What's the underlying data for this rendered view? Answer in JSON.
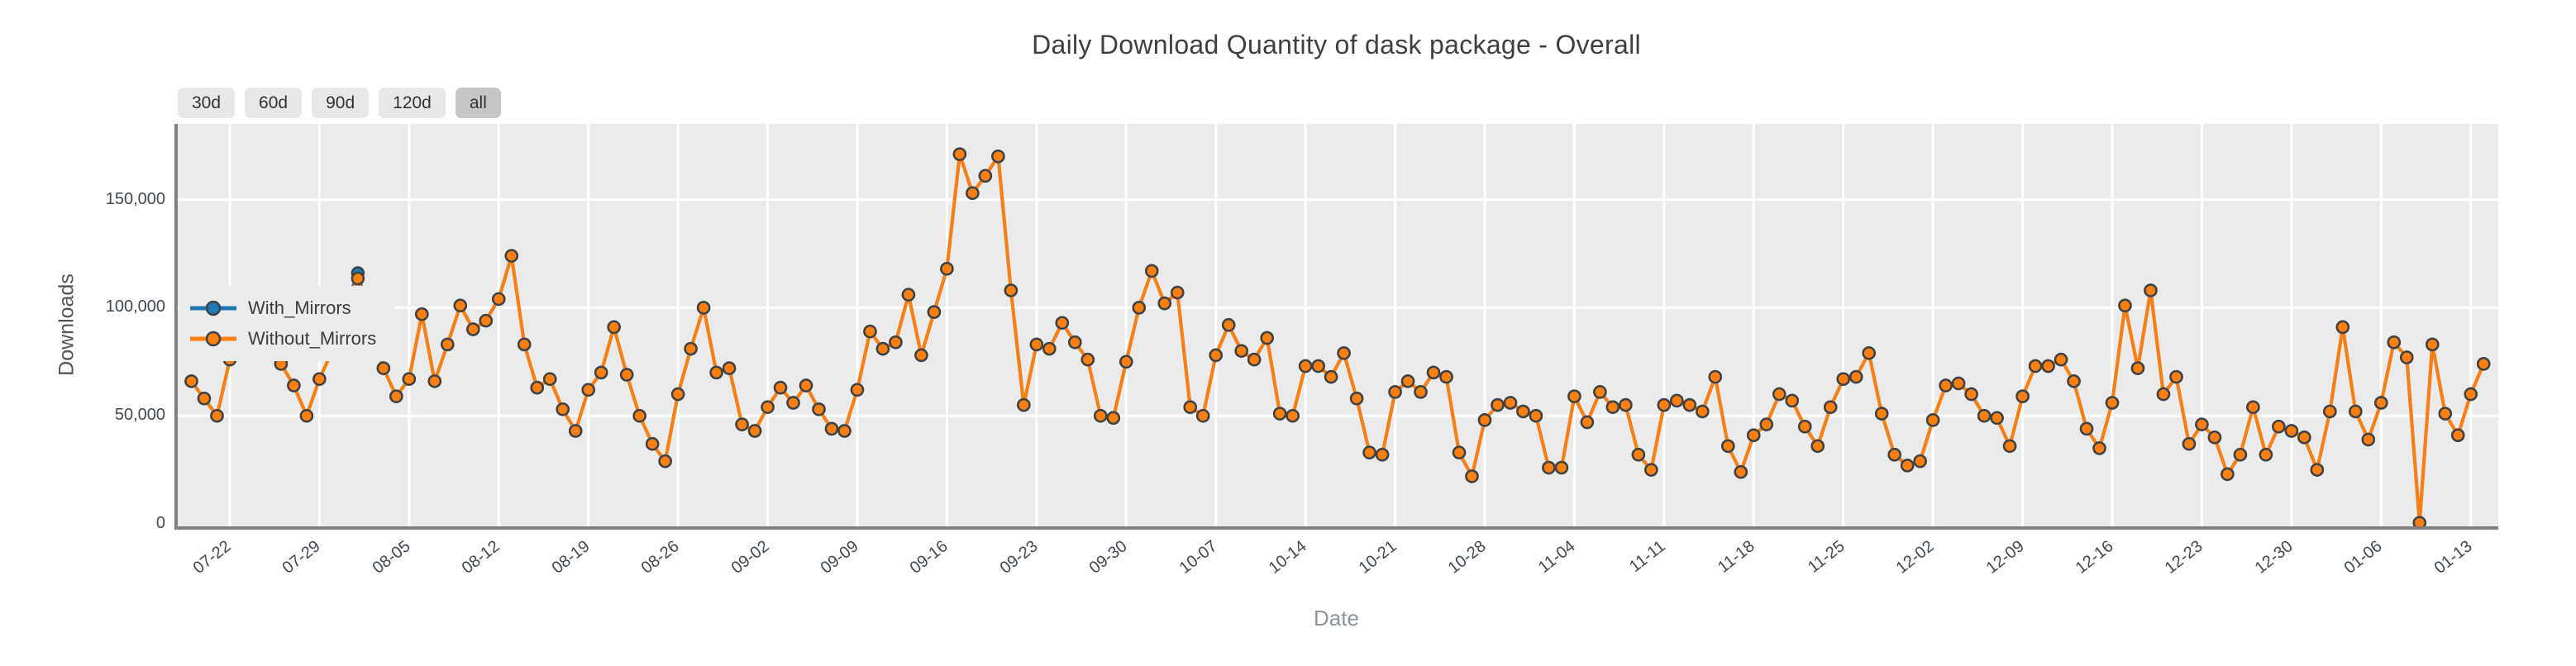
{
  "range_buttons": [
    {
      "label": "30d",
      "active": false
    },
    {
      "label": "60d",
      "active": false
    },
    {
      "label": "90d",
      "active": false
    },
    {
      "label": "120d",
      "active": false
    },
    {
      "label": "all",
      "active": true
    }
  ],
  "chart_data": {
    "type": "line",
    "title": "Daily Download Quantity of dask package - Overall",
    "xlabel": "Date",
    "ylabel": "Downloads",
    "grid": true,
    "legend_position": "upper left",
    "ylim": [
      0,
      185000
    ],
    "y_ticks": [
      0,
      50000,
      100000,
      150000
    ],
    "y_tick_labels": [
      "0",
      "50,000",
      "100,000",
      "150,000"
    ],
    "x_tick_labels": [
      "07-22",
      "07-29",
      "08-05",
      "08-12",
      "08-19",
      "08-26",
      "09-02",
      "09-09",
      "09-16",
      "09-23",
      "09-30",
      "10-07",
      "10-14",
      "10-21",
      "10-28",
      "11-04",
      "11-11",
      "11-18",
      "11-25",
      "12-02",
      "12-09",
      "12-16",
      "12-23",
      "12-30",
      "01-06",
      "01-13"
    ],
    "x_dates": [
      "07-19",
      "07-20",
      "07-21",
      "07-22",
      "07-23",
      "07-24",
      "07-25",
      "07-26",
      "07-27",
      "07-28",
      "07-29",
      "07-30",
      "07-31",
      "08-01",
      "08-02",
      "08-03",
      "08-04",
      "08-05",
      "08-06",
      "08-07",
      "08-08",
      "08-09",
      "08-10",
      "08-11",
      "08-12",
      "08-13",
      "08-14",
      "08-15",
      "08-16",
      "08-17",
      "08-18",
      "08-19",
      "08-20",
      "08-21",
      "08-22",
      "08-23",
      "08-24",
      "08-25",
      "08-26",
      "08-27",
      "08-28",
      "08-29",
      "08-30",
      "08-31",
      "09-01",
      "09-02",
      "09-03",
      "09-04",
      "09-05",
      "09-06",
      "09-07",
      "09-08",
      "09-09",
      "09-10",
      "09-11",
      "09-12",
      "09-13",
      "09-14",
      "09-15",
      "09-16",
      "09-17",
      "09-18",
      "09-19",
      "09-20",
      "09-21",
      "09-22",
      "09-23",
      "09-24",
      "09-25",
      "09-26",
      "09-27",
      "09-28",
      "09-29",
      "09-30",
      "10-01",
      "10-02",
      "10-03",
      "10-04",
      "10-05",
      "10-06",
      "10-07",
      "10-08",
      "10-09",
      "10-10",
      "10-11",
      "10-12",
      "10-13",
      "10-14",
      "10-15",
      "10-16",
      "10-17",
      "10-18",
      "10-19",
      "10-20",
      "10-21",
      "10-22",
      "10-23",
      "10-24",
      "10-25",
      "10-26",
      "10-27",
      "10-28",
      "10-29",
      "10-30",
      "10-31",
      "11-01",
      "11-02",
      "11-03",
      "11-04",
      "11-05",
      "11-06",
      "11-07",
      "11-08",
      "11-09",
      "11-10",
      "11-11",
      "11-12",
      "11-13",
      "11-14",
      "11-15",
      "11-16",
      "11-17",
      "11-18",
      "11-19",
      "11-20",
      "11-21",
      "11-22",
      "11-23",
      "11-24",
      "11-25",
      "11-26",
      "11-27",
      "11-28",
      "11-29",
      "11-30",
      "12-01",
      "12-02",
      "12-03",
      "12-04",
      "12-05",
      "12-06",
      "12-07",
      "12-08",
      "12-09",
      "12-10",
      "12-11",
      "12-12",
      "12-13",
      "12-14",
      "12-15",
      "12-16",
      "12-17",
      "12-18",
      "12-19",
      "12-20",
      "12-21",
      "12-22",
      "12-23",
      "12-24",
      "12-25",
      "12-26",
      "12-27",
      "12-28",
      "12-29",
      "12-30",
      "12-31",
      "01-01",
      "01-02",
      "01-03",
      "01-04",
      "01-05",
      "01-06",
      "01-07",
      "01-08",
      "01-09",
      "01-10",
      "01-11",
      "01-12",
      "01-13",
      "01-14"
    ],
    "series": [
      {
        "name": "With_Mirrors",
        "color": "#1f77b4",
        "values": [
          66000,
          58000,
          50000,
          76000,
          96000,
          94000,
          86000,
          74000,
          64000,
          50000,
          67000,
          80000,
          100000,
          116000,
          93000,
          72000,
          59000,
          67000,
          97000,
          66000,
          83000,
          101000,
          90000,
          94000,
          104000,
          124000,
          83000,
          63000,
          67000,
          53000,
          43000,
          62000,
          70000,
          91000,
          69000,
          50000,
          37000,
          29000,
          60000,
          81000,
          100000,
          70000,
          72000,
          46000,
          43000,
          54000,
          63000,
          56000,
          64000,
          53000,
          44000,
          43000,
          62000,
          89000,
          81000,
          84000,
          106000,
          78000,
          98000,
          118000,
          171000,
          153000,
          161000,
          170000,
          108000,
          55000,
          83000,
          81000,
          93000,
          84000,
          76000,
          50000,
          49000,
          75000,
          100000,
          117000,
          102000,
          107000,
          54000,
          50000,
          78000,
          92000,
          80000,
          76000,
          86000,
          51000,
          50000,
          73000,
          73000,
          68000,
          79000,
          58000,
          33000,
          32000,
          61000,
          66000,
          61000,
          70000,
          68000,
          33000,
          22000,
          48000,
          55000,
          56000,
          52000,
          50000,
          26000,
          26000,
          59000,
          47000,
          61000,
          54000,
          55000,
          32000,
          25000,
          55000,
          57000,
          55000,
          52000,
          68000,
          36000,
          24000,
          41000,
          46000,
          60000,
          57000,
          45000,
          36000,
          54000,
          67000,
          68000,
          79000,
          51000,
          32000,
          27000,
          29000,
          48000,
          64000,
          65000,
          60000,
          50000,
          49000,
          36000,
          59000,
          73000,
          73000,
          76000,
          66000,
          44000,
          35000,
          56000,
          101000,
          72000,
          108000,
          60000,
          68000,
          37000,
          46000,
          40000,
          23000,
          32000,
          54000,
          32000,
          45000,
          43000,
          40000,
          25000,
          52000,
          91000,
          52000,
          39000,
          56000,
          84000,
          77000,
          500,
          83000,
          51000,
          41000,
          60000,
          74000
        ]
      },
      {
        "name": "Without_Mirrors",
        "color": "#ff7f0e",
        "values": [
          66000,
          58000,
          50000,
          76000,
          96000,
          94000,
          86000,
          74000,
          64000,
          50000,
          67000,
          80000,
          100000,
          113500,
          93000,
          72000,
          59000,
          67000,
          97000,
          66000,
          83000,
          101000,
          90000,
          94000,
          104000,
          124000,
          83000,
          63000,
          67000,
          53000,
          43000,
          62000,
          70000,
          91000,
          69000,
          50000,
          37000,
          29000,
          60000,
          81000,
          100000,
          70000,
          72000,
          46000,
          43000,
          54000,
          63000,
          56000,
          64000,
          53000,
          44000,
          43000,
          62000,
          89000,
          81000,
          84000,
          106000,
          78000,
          98000,
          118000,
          171000,
          153000,
          161000,
          170000,
          108000,
          55000,
          83000,
          81000,
          93000,
          84000,
          76000,
          50000,
          49000,
          75000,
          100000,
          117000,
          102000,
          107000,
          54000,
          50000,
          78000,
          92000,
          80000,
          76000,
          86000,
          51000,
          50000,
          73000,
          73000,
          68000,
          79000,
          58000,
          33000,
          32000,
          61000,
          66000,
          61000,
          70000,
          68000,
          33000,
          22000,
          48000,
          55000,
          56000,
          52000,
          50000,
          26000,
          26000,
          59000,
          47000,
          61000,
          54000,
          55000,
          32000,
          25000,
          55000,
          57000,
          55000,
          52000,
          68000,
          36000,
          24000,
          41000,
          46000,
          60000,
          57000,
          45000,
          36000,
          54000,
          67000,
          68000,
          79000,
          51000,
          32000,
          27000,
          29000,
          48000,
          64000,
          65000,
          60000,
          50000,
          49000,
          36000,
          59000,
          73000,
          73000,
          76000,
          66000,
          44000,
          35000,
          56000,
          101000,
          72000,
          108000,
          60000,
          68000,
          37000,
          46000,
          40000,
          23000,
          32000,
          54000,
          32000,
          45000,
          43000,
          40000,
          25000,
          52000,
          91000,
          52000,
          39000,
          56000,
          84000,
          77000,
          500,
          83000,
          51000,
          41000,
          60000,
          74000
        ]
      }
    ]
  },
  "colors": {
    "figure_bg": "#ffffff",
    "plot_bg": "#ebebeb",
    "grid": "#ffffff",
    "axis_spine": "#7f7f7f",
    "marker_edge": "#3d4247",
    "button_bg": "#e8e8e8",
    "button_active_bg": "#c6c6c6",
    "tick_text": "#3f4850",
    "title_text": "#3f3f3f"
  }
}
